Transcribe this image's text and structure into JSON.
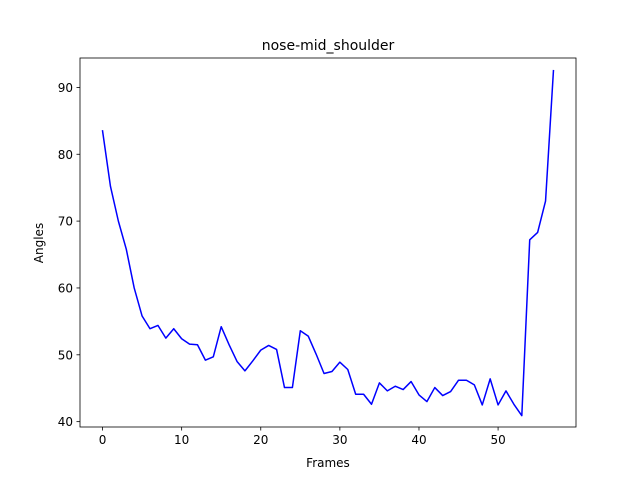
{
  "chart_data": {
    "type": "line",
    "title": "nose-mid_shoulder",
    "xlabel": "Frames",
    "ylabel": "Angles",
    "xlim": [
      -2.85,
      59.85
    ],
    "ylim": [
      39.2,
      94.4
    ],
    "xticks": [
      0,
      10,
      20,
      30,
      40,
      50
    ],
    "yticks": [
      40,
      50,
      60,
      70,
      80,
      90
    ],
    "grid": false,
    "line_color": "#0000ff",
    "series": [
      {
        "x": [
          0,
          1,
          2,
          3,
          4,
          5,
          6,
          7,
          8,
          9,
          10,
          11,
          12,
          13,
          14,
          15,
          16,
          17,
          18,
          19,
          20,
          21,
          22,
          23,
          24,
          25,
          26,
          27,
          28,
          29,
          30,
          31,
          32,
          33,
          34,
          35,
          36,
          37,
          38,
          39,
          40,
          41,
          42,
          43,
          44,
          45,
          46,
          47,
          48,
          49,
          50,
          51,
          52,
          53,
          54,
          55,
          56,
          57
        ],
        "values": [
          83.5,
          75.2,
          70.0,
          65.8,
          60.0,
          55.8,
          53.9,
          54.4,
          52.5,
          53.9,
          52.4,
          51.6,
          51.5,
          49.2,
          49.7,
          54.2,
          51.5,
          49.0,
          47.6,
          49.1,
          50.7,
          51.4,
          50.8,
          45.1,
          45.1,
          53.6,
          52.8,
          50.1,
          47.2,
          47.5,
          48.9,
          47.8,
          44.1,
          44.1,
          42.6,
          45.8,
          44.6,
          45.3,
          44.8,
          46.0,
          44.0,
          43.0,
          45.1,
          43.9,
          44.5,
          46.2,
          46.2,
          45.5,
          42.5,
          46.4,
          42.5,
          44.6,
          42.6,
          40.9,
          67.2,
          68.3,
          73.0,
          92.5
        ]
      }
    ]
  }
}
